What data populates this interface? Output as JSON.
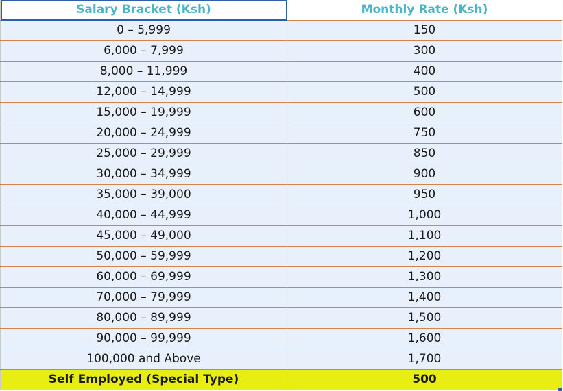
{
  "table": {
    "headers": [
      "Salary Bracket (Ksh)",
      "Monthly Rate (Ksh)"
    ],
    "rows": [
      [
        "0 – 5,999",
        "150"
      ],
      [
        "6,000 – 7,999",
        "300"
      ],
      [
        "8,000 – 11,999",
        "400"
      ],
      [
        "12,000 – 14,999",
        "500"
      ],
      [
        "15,000 – 19,999",
        "600"
      ],
      [
        "20,000 – 24,999",
        "750"
      ],
      [
        "25,000 – 29,999",
        "850"
      ],
      [
        "30,000 – 34,999",
        "900"
      ],
      [
        "35,000 – 39,000",
        "950"
      ],
      [
        "40,000 – 44,999",
        "1,000"
      ],
      [
        "45,000 – 49,000",
        "1,100"
      ],
      [
        "50,000 – 59,999",
        "1,200"
      ],
      [
        "60,000 – 69,999",
        "1,300"
      ],
      [
        "70,000 – 79,999",
        "1,400"
      ],
      [
        "80,000 – 89,999",
        "1,500"
      ],
      [
        "90,000 – 99,999",
        "1,600"
      ],
      [
        "100,000 and Above",
        "1,700"
      ]
    ],
    "special_row": [
      "Self Employed (Special Type)",
      "500"
    ]
  },
  "colors": {
    "header_text": "#4ab4c8",
    "row_background": "#e8f1fb",
    "special_row_background": "#e8ee12",
    "row_divider": "#d9824f",
    "selection_border": "#2f5fa8"
  }
}
